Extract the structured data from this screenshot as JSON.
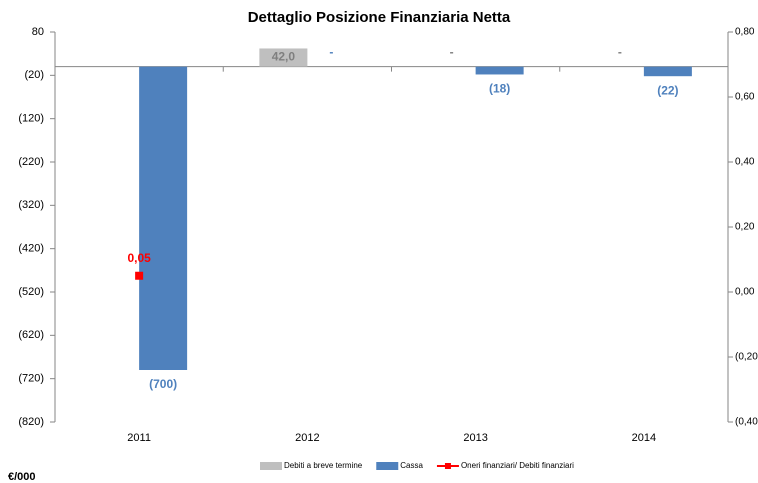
{
  "chart_data": {
    "type": "bar",
    "title": "Dettaglio Posizione Finanziaria Netta",
    "annotation": "€/000",
    "categories": [
      "2011",
      "2012",
      "2013",
      "2014"
    ],
    "series": [
      {
        "name": "Debiti a breve termine",
        "color": "#bfbfbf",
        "values": [
          null,
          42,
          0,
          0
        ],
        "value_labels": [
          null,
          "42,0",
          "-",
          "-"
        ]
      },
      {
        "name": "Cassa",
        "color": "#4f81bd",
        "values": [
          -700,
          0,
          -18,
          -22
        ],
        "value_labels": [
          "(700)",
          "-",
          "(18)",
          "(22)"
        ]
      },
      {
        "name": "Oneri finanziari/ Debiti finanziari",
        "color": "#ff0000",
        "axis": "y2",
        "type": "line",
        "values": [
          0.05,
          null,
          null,
          null
        ],
        "value_labels": [
          "0,05",
          null,
          null,
          null
        ]
      }
    ],
    "ylim": [
      -820,
      80
    ],
    "yticks": [
      80,
      {
        "value": -20,
        "label": "(20)"
      },
      {
        "value": -120,
        "label": "(120)"
      },
      {
        "value": -220,
        "label": "(220)"
      },
      {
        "value": -320,
        "label": "(320)"
      },
      {
        "value": -420,
        "label": "(420)"
      },
      {
        "value": -520,
        "label": "(520)"
      },
      {
        "value": -620,
        "label": "(620)"
      },
      {
        "value": -720,
        "label": "(720)"
      },
      {
        "value": -820,
        "label": "(820)"
      }
    ],
    "y2lim": [
      -0.4,
      0.8
    ],
    "y2ticks": [
      {
        "value": 0.8,
        "label": "0,80"
      },
      {
        "value": 0.6,
        "label": "0,60"
      },
      {
        "value": 0.4,
        "label": "0,40"
      },
      {
        "value": 0.2,
        "label": "0,20"
      },
      {
        "value": 0,
        "label": "0,00"
      },
      {
        "value": -0.2,
        "label": "(0,20"
      },
      {
        "value": -0.4,
        "label": "(0,40"
      }
    ],
    "grid": false,
    "legend": "bottom"
  }
}
